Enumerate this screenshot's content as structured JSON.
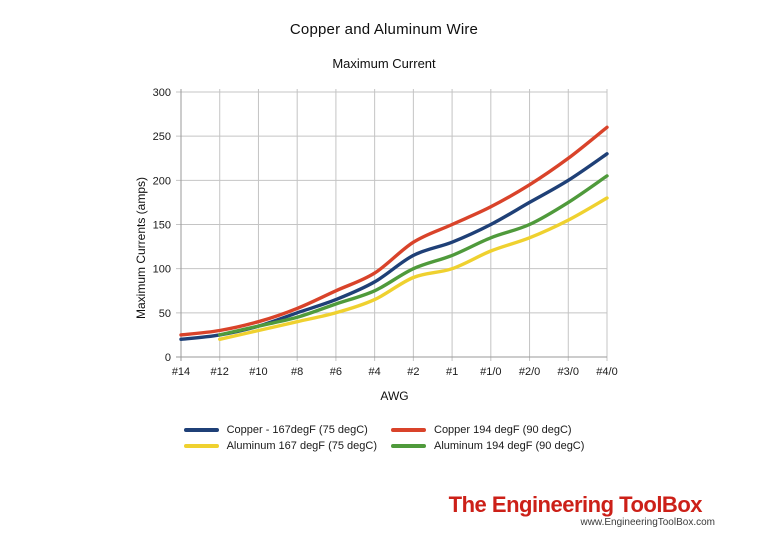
{
  "chart_data": {
    "type": "line",
    "title": "Copper and Aluminum Wire",
    "subtitle": "Maximum Current",
    "xlabel": "AWG",
    "ylabel": "Maximum Currents (amps)",
    "ylim": [
      0,
      300
    ],
    "yticks": [
      0,
      50,
      100,
      150,
      200,
      250,
      300
    ],
    "grid": true,
    "legend_position": "bottom",
    "categories": [
      "#14",
      "#12",
      "#10",
      "#8",
      "#6",
      "#4",
      "#2",
      "#1",
      "#1/0",
      "#2/0",
      "#3/0",
      "#4/0"
    ],
    "series": [
      {
        "name": "Copper - 167degF (75 degC)",
        "color": "#1f4077",
        "values": [
          20,
          25,
          35,
          50,
          65,
          85,
          115,
          130,
          150,
          175,
          200,
          230
        ]
      },
      {
        "name": "Copper 194 degF (90 degC)",
        "color": "#d9432a",
        "values": [
          25,
          30,
          40,
          55,
          75,
          95,
          130,
          150,
          170,
          195,
          225,
          260
        ]
      },
      {
        "name": "Aluminum 167 degF (75 degC)",
        "color": "#efd12f",
        "values": [
          null,
          20,
          30,
          40,
          50,
          65,
          90,
          100,
          120,
          135,
          155,
          180
        ]
      },
      {
        "name": "Aluminum 194 degF (90 degC)",
        "color": "#4f9a3b",
        "values": [
          null,
          25,
          35,
          45,
          60,
          75,
          100,
          115,
          135,
          150,
          175,
          205
        ]
      }
    ],
    "colors": {
      "gridline": "#c4c4c4",
      "axis": "#9a9a9a",
      "tick_label": "#1a1a1a"
    }
  },
  "branding": {
    "logo_text": "The Engineering ToolBox",
    "logo_color": "#cc2018",
    "website": "www.EngineeringToolBox.com"
  }
}
